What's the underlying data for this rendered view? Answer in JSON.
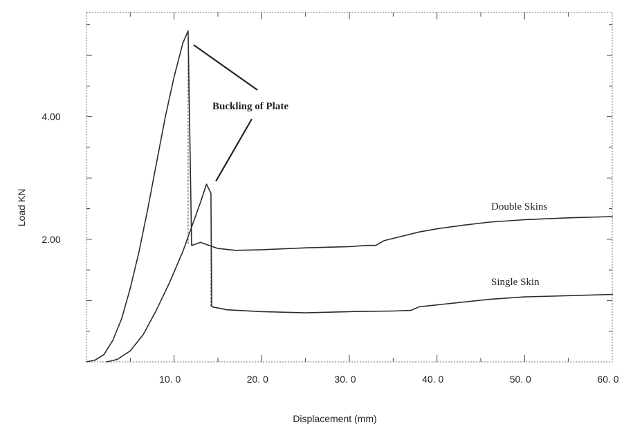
{
  "chart_data": {
    "type": "line",
    "title": "",
    "xlabel": "Displacement (mm)",
    "ylabel": "Load KN",
    "xlim": [
      0,
      60
    ],
    "ylim": [
      0,
      5.7
    ],
    "x_ticks": [
      10,
      20,
      30,
      40,
      50,
      60
    ],
    "x_tick_labels": [
      "10. 0",
      "20. 0",
      "30. 0",
      "40. 0",
      "50. 0",
      "60. 0"
    ],
    "y_ticks": [
      2,
      4
    ],
    "y_tick_labels": [
      "2.00",
      "4.00"
    ],
    "grid": false,
    "series": [
      {
        "name": "Double Skins",
        "x": [
          0,
          1,
          2,
          3,
          4,
          5,
          6,
          7,
          8,
          9,
          10,
          11,
          11.6,
          12,
          13,
          15,
          17,
          20,
          25,
          30,
          32,
          33,
          34,
          36,
          38,
          40,
          43,
          46,
          50,
          55,
          60
        ],
        "y": [
          0,
          0.03,
          0.12,
          0.35,
          0.7,
          1.2,
          1.8,
          2.5,
          3.25,
          4.0,
          4.65,
          5.2,
          5.4,
          1.9,
          1.95,
          1.85,
          1.82,
          1.83,
          1.86,
          1.88,
          1.9,
          1.9,
          1.98,
          2.05,
          2.12,
          2.17,
          2.23,
          2.28,
          2.32,
          2.35,
          2.37
        ]
      },
      {
        "name": "Single Skin",
        "x": [
          2.3,
          3.5,
          5,
          6.5,
          8,
          9.5,
          11,
          12,
          13,
          13.7,
          14.2,
          14.3,
          16,
          20,
          25,
          30,
          35,
          37,
          38,
          42,
          46,
          50,
          55,
          60
        ],
        "y": [
          0,
          0.04,
          0.18,
          0.45,
          0.85,
          1.3,
          1.8,
          2.2,
          2.6,
          2.9,
          2.75,
          0.9,
          0.85,
          0.82,
          0.8,
          0.82,
          0.83,
          0.84,
          0.9,
          0.96,
          1.02,
          1.06,
          1.08,
          1.1
        ]
      }
    ],
    "annotations": {
      "buckling": "Buckling of Plate",
      "double_skins": "Double Skins",
      "single_skin": "Single Skin"
    }
  }
}
